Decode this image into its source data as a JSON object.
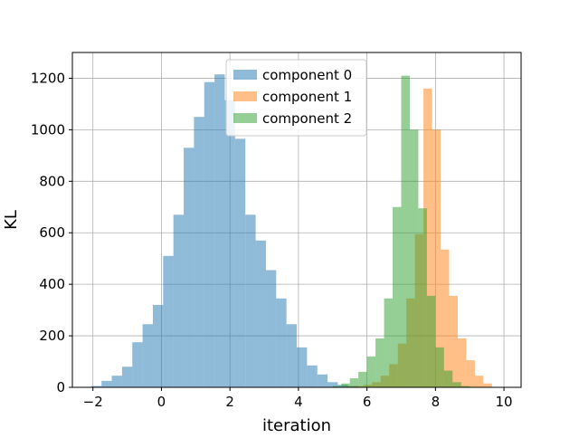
{
  "chart_data": {
    "type": "bar",
    "title": "",
    "xlabel": "iteration",
    "ylabel": "KL",
    "xlim": [
      -2.6,
      10.5
    ],
    "ylim": [
      0,
      1300
    ],
    "xticks": [
      -2,
      0,
      2,
      4,
      6,
      8,
      10
    ],
    "yticks": [
      0,
      200,
      400,
      600,
      800,
      1000,
      1200
    ],
    "x_tick_labels": [
      "−2",
      "0",
      "2",
      "4",
      "6",
      "8",
      "10"
    ],
    "y_tick_labels": [
      "0",
      "200",
      "400",
      "600",
      "800",
      "1000",
      "1200"
    ],
    "grid": true,
    "legend_position": "top-center",
    "series": [
      {
        "name": "component 0",
        "color": "#1f77b4",
        "alpha": 0.5,
        "bin_width": 0.3,
        "bins": [
          [
            -2.05,
            5
          ],
          [
            -1.75,
            25
          ],
          [
            -1.45,
            45
          ],
          [
            -1.15,
            80
          ],
          [
            -0.85,
            175
          ],
          [
            -0.55,
            245
          ],
          [
            -0.25,
            320
          ],
          [
            0.05,
            510
          ],
          [
            0.35,
            670
          ],
          [
            0.65,
            930
          ],
          [
            0.95,
            1050
          ],
          [
            1.25,
            1185
          ],
          [
            1.55,
            1215
          ],
          [
            1.85,
            1115
          ],
          [
            2.15,
            965
          ],
          [
            2.45,
            670
          ],
          [
            2.75,
            570
          ],
          [
            3.05,
            455
          ],
          [
            3.35,
            345
          ],
          [
            3.65,
            245
          ],
          [
            3.95,
            155
          ],
          [
            4.25,
            85
          ],
          [
            4.55,
            50
          ],
          [
            4.85,
            20
          ],
          [
            5.15,
            10
          ],
          [
            5.45,
            5
          ]
        ]
      },
      {
        "name": "component 1",
        "color": "#ff7f0e",
        "alpha": 0.5,
        "bin_width": 0.25,
        "bins": [
          [
            5.4,
            3
          ],
          [
            5.65,
            5
          ],
          [
            5.9,
            10
          ],
          [
            6.15,
            20
          ],
          [
            6.4,
            45
          ],
          [
            6.65,
            90
          ],
          [
            6.9,
            170
          ],
          [
            7.15,
            345
          ],
          [
            7.4,
            595
          ],
          [
            7.65,
            1160
          ],
          [
            7.9,
            1000
          ],
          [
            8.15,
            535
          ],
          [
            8.4,
            355
          ],
          [
            8.65,
            190
          ],
          [
            8.9,
            105
          ],
          [
            9.15,
            45
          ],
          [
            9.4,
            15
          ]
        ]
      },
      {
        "name": "component 2",
        "color": "#2ca02c",
        "alpha": 0.5,
        "bin_width": 0.25,
        "bins": [
          [
            5.0,
            5
          ],
          [
            5.25,
            15
          ],
          [
            5.5,
            35
          ],
          [
            5.75,
            60
          ],
          [
            6.0,
            120
          ],
          [
            6.25,
            190
          ],
          [
            6.5,
            345
          ],
          [
            6.75,
            700
          ],
          [
            7.0,
            1210
          ],
          [
            7.25,
            1000
          ],
          [
            7.5,
            695
          ],
          [
            7.75,
            355
          ],
          [
            8.0,
            155
          ],
          [
            8.25,
            65
          ],
          [
            8.5,
            20
          ],
          [
            8.75,
            5
          ]
        ]
      }
    ]
  }
}
